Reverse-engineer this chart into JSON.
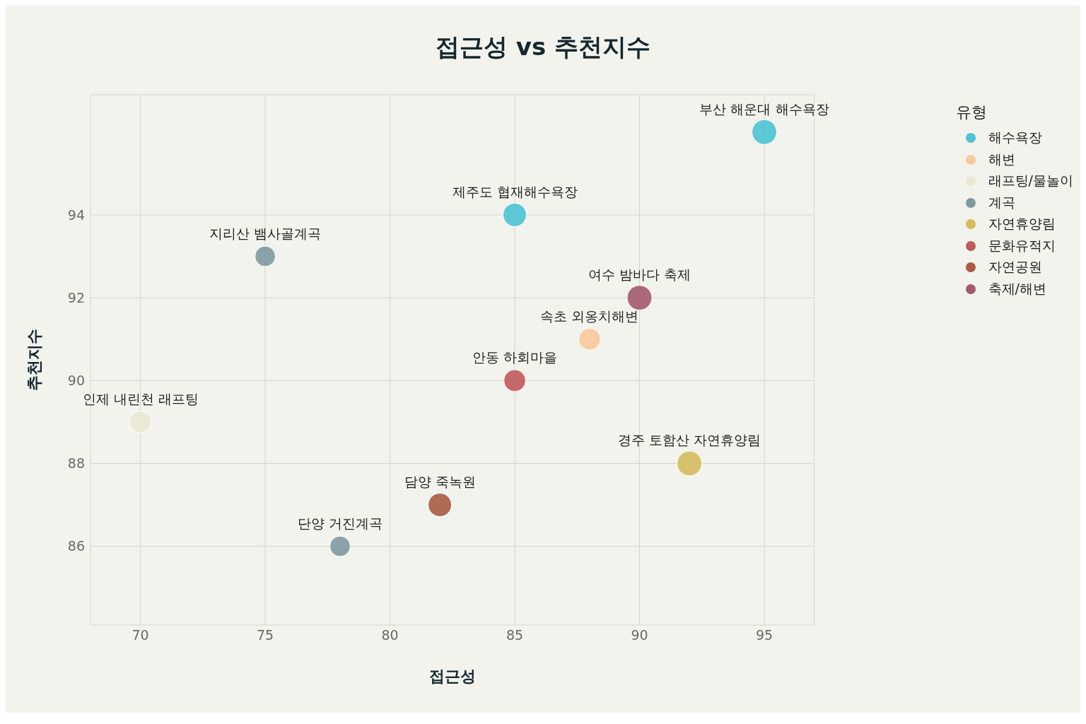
{
  "chart_data": {
    "type": "bubble",
    "title": "접근성 vs 추천지수",
    "xlabel": "접근성",
    "ylabel": "추천지수",
    "legend_title": "유형",
    "xlim": [
      68,
      97
    ],
    "xticks": [
      70,
      75,
      80,
      85,
      90,
      95
    ],
    "ylim": [
      84.1,
      96.9
    ],
    "yticks": [
      86,
      88,
      90,
      92,
      94
    ],
    "grid": true,
    "legend": "top right",
    "series": [
      {
        "name": "해수욕장",
        "color": "#4dc3d3",
        "x": [
          95,
          85
        ],
        "values": [
          96,
          94
        ],
        "sizes": [
          1,
          0.89
        ]
      },
      {
        "name": "해변",
        "color": "#f9c99a",
        "x": [
          88
        ],
        "values": [
          91
        ],
        "sizes": [
          0.78
        ]
      },
      {
        "name": "래프팅/물놀이",
        "color": "#ebe8d4",
        "x": [
          70
        ],
        "values": [
          89
        ],
        "sizes": [
          0.78
        ]
      },
      {
        "name": "계곡",
        "color": "#7f9aa0",
        "x": [
          75,
          78
        ],
        "values": [
          93,
          86
        ],
        "sizes": [
          0.68,
          0.68
        ]
      },
      {
        "name": "자연휴양림",
        "color": "#d4bd5c",
        "x": [
          92
        ],
        "values": [
          88
        ],
        "sizes": [
          1
        ]
      },
      {
        "name": "문화유적지",
        "color": "#c0595a",
        "x": [
          85
        ],
        "values": [
          90
        ],
        "sizes": [
          0.78
        ]
      },
      {
        "name": "자연공원",
        "color": "#a85c44",
        "x": [
          82
        ],
        "values": [
          87
        ],
        "sizes": [
          0.89
        ]
      },
      {
        "name": "축제/해변",
        "color": "#a35a6b",
        "x": [
          90
        ],
        "values": [
          92
        ],
        "sizes": [
          1
        ]
      }
    ],
    "annotations": [
      {
        "text": "부산 해운대 해수욕장",
        "x": 95,
        "y": 96
      },
      {
        "text": "제주도 협재해수욕장",
        "x": 85,
        "y": 94
      },
      {
        "text": "지리산 뱀사골계곡",
        "x": 75,
        "y": 93
      },
      {
        "text": "여수 밤바다 축제",
        "x": 90,
        "y": 92
      },
      {
        "text": "속초 외옹치해변",
        "x": 88,
        "y": 91
      },
      {
        "text": "안동 하회마을",
        "x": 85,
        "y": 90
      },
      {
        "text": "인제 내린천 래프팅",
        "x": 70,
        "y": 89
      },
      {
        "text": "경주 토함산 자연휴양림",
        "x": 92,
        "y": 88
      },
      {
        "text": "담양 죽녹원",
        "x": 82,
        "y": 87
      },
      {
        "text": "단양 거진계곡",
        "x": 78,
        "y": 86
      }
    ]
  }
}
